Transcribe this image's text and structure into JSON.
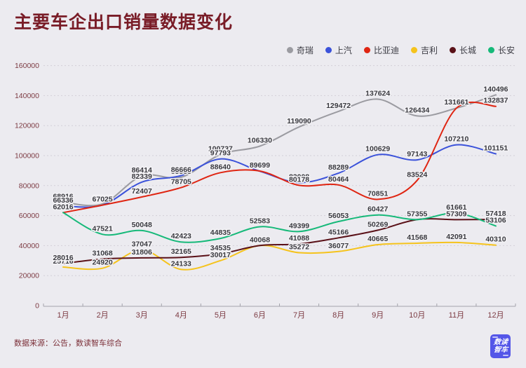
{
  "page": {
    "source_note": "数据来源：公告，数读智车综合",
    "logo": {
      "line1": "数读",
      "line2": "智车"
    },
    "colors": {
      "background": "#ecebf0",
      "title_text": "#791c27",
      "axis_text": "#7c3a42",
      "label_text": "#3a3a40",
      "label_halo": "#f4f3f6",
      "grid_line": "#d2cfd7",
      "axis_line": "#a3a3ab"
    }
  },
  "chart_data": {
    "type": "line",
    "title": "主要车企出口销量数据变化",
    "xlabel": "",
    "ylabel": "",
    "ylim": [
      0,
      160000
    ],
    "y_ticks": [
      0,
      20000,
      40000,
      60000,
      80000,
      100000,
      120000,
      140000,
      160000
    ],
    "grid": "dotted-horizontal",
    "legend_position": "top-right",
    "smooth": true,
    "categories": [
      "1月",
      "2月",
      "3月",
      "4月",
      "5月",
      "6月",
      "7月",
      "8月",
      "9月",
      "10月",
      "11月",
      "12月"
    ],
    "series": [
      {
        "name": "奇瑞",
        "color": "#9b9ba1",
        "values": [
          68916,
          67825,
          86414,
          85555,
          100737,
          106330,
          119090,
          129472,
          137624,
          126434,
          131661,
          140496
        ]
      },
      {
        "name": "上汽",
        "color": "#3b52da",
        "values": [
          66336,
          67025,
          82339,
          86666,
          97793,
          89599,
          82008,
          88289,
          100629,
          97143,
          107210,
          101151
        ]
      },
      {
        "name": "比亚迪",
        "color": "#df2512",
        "values": [
          62016,
          67025,
          72407,
          78705,
          88640,
          89699,
          80178,
          80464,
          70851,
          83524,
          131661,
          132837
        ]
      },
      {
        "name": "吉利",
        "color": "#f5c31c",
        "values": [
          25716,
          24920,
          37047,
          24133,
          30017,
          40068,
          35272,
          36077,
          40665,
          41568,
          42091,
          40310
        ]
      },
      {
        "name": "长城",
        "color": "#5a1118",
        "values": [
          28016,
          31068,
          31806,
          32165,
          34535,
          40068,
          41088,
          45166,
          50269,
          57355,
          57309,
          57418
        ]
      },
      {
        "name": "长安",
        "color": "#16b979",
        "values": [
          62016,
          47521,
          50048,
          42423,
          44835,
          52583,
          49399,
          56053,
          60427,
          57355,
          61661,
          53106
        ]
      }
    ]
  }
}
